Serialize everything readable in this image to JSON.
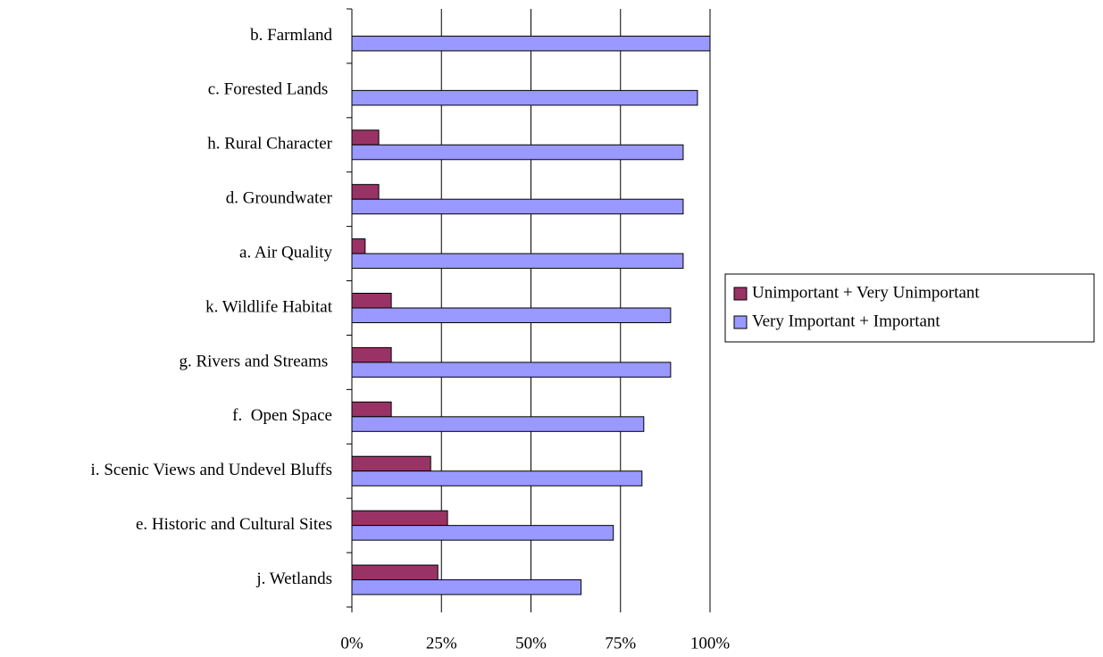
{
  "chart_data": {
    "type": "bar",
    "orientation": "horizontal",
    "categories": [
      "b. Farmland",
      "c. Forested Lands ",
      "h. Rural Character",
      "d. Groundwater",
      "a. Air Quality",
      "k. Wildlife Habitat",
      "g. Rivers and Streams ",
      "f.  Open Space",
      "i. Scenic Views and Undevel Bluffs",
      "e. Historic and Cultural Sites",
      "j. Wetlands"
    ],
    "series": [
      {
        "name": "Unimportant + Very Unimportant",
        "color": "#993366",
        "values": [
          0,
          0,
          7.5,
          7.5,
          3.7,
          11,
          11,
          11,
          22,
          26.7,
          24
        ]
      },
      {
        "name": "Very Important + Important",
        "color": "#9999ff",
        "values": [
          100,
          96.5,
          92.5,
          92.5,
          92.5,
          89,
          89,
          81.5,
          81,
          73,
          64
        ]
      }
    ],
    "xlim": [
      0,
      100
    ],
    "xticks": [
      {
        "value": 0,
        "label": "0%"
      },
      {
        "value": 25,
        "label": "25%"
      },
      {
        "value": 50,
        "label": "50%"
      },
      {
        "value": 75,
        "label": "75%"
      },
      {
        "value": 100,
        "label": "100%"
      }
    ],
    "grid": true,
    "legend": "right"
  }
}
